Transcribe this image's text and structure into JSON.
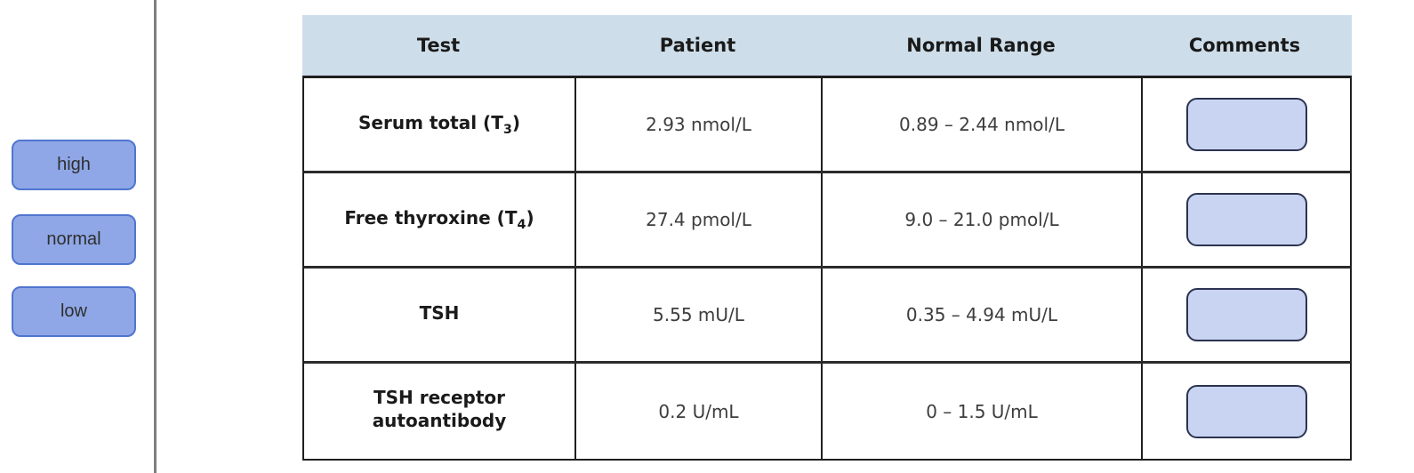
{
  "colors": {
    "header-bg": "#cddde9",
    "table-border": "#1f1f1f",
    "divider": "#7f7f7f",
    "token-fill": "#8fa7e6",
    "token-border": "#4f75cf",
    "dropzone-fill": "#c9d4f2",
    "dropzone-border": "#2b3350",
    "text-dark": "#1a1a1a",
    "text-value": "#3d3d3d"
  },
  "tokens": {
    "items": [
      {
        "label": "high"
      },
      {
        "label": "normal"
      },
      {
        "label": "low"
      }
    ]
  },
  "table": {
    "columns": [
      "Test",
      "Patient",
      "Normal Range",
      "Comments"
    ],
    "rows": [
      {
        "test_prefix": "Serum total (T",
        "test_sub": "3",
        "test_suffix": ")",
        "patient": "2.93 nmol/L",
        "normal_range": "0.89 – 2.44 nmol/L"
      },
      {
        "test_prefix": "Free thyroxine (T",
        "test_sub": "4",
        "test_suffix": ")",
        "patient": "27.4 pmol/L",
        "normal_range": "9.0 – 21.0 pmol/L"
      },
      {
        "test_prefix": "TSH",
        "test_sub": "",
        "test_suffix": "",
        "patient": "5.55 mU/L",
        "normal_range": "0.35 – 4.94 mU/L"
      },
      {
        "test_prefix": "TSH receptor autoantibody",
        "test_sub": "",
        "test_suffix": "",
        "patient": "0.2 U/mL",
        "normal_range": "0 – 1.5 U/mL"
      }
    ]
  }
}
